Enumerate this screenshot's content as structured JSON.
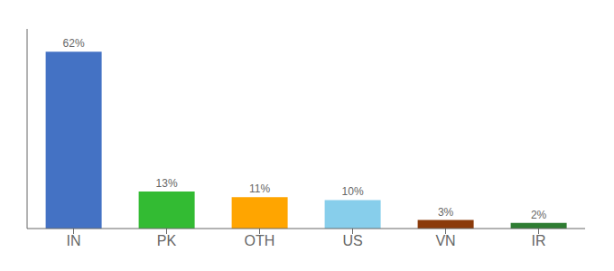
{
  "chart_data": {
    "type": "bar",
    "categories": [
      "IN",
      "PK",
      "OTH",
      "US",
      "VN",
      "IR"
    ],
    "values": [
      62,
      13,
      11,
      10,
      3,
      2
    ],
    "value_labels": [
      "62%",
      "13%",
      "11%",
      "10%",
      "3%",
      "2%"
    ],
    "data_labels": true,
    "colors": [
      "#4472C4",
      "#33BB33",
      "#FFA500",
      "#87CEEB",
      "#8B3A0A",
      "#2E7D32"
    ],
    "ylim": [
      0,
      70
    ],
    "tick_labels": "x",
    "grid": false
  }
}
